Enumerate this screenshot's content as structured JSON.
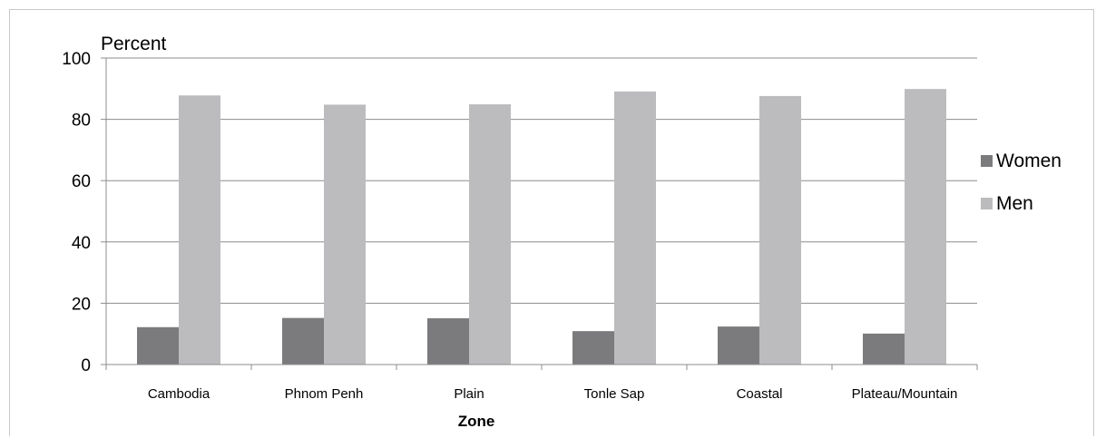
{
  "chart_data": {
    "type": "bar",
    "categories": [
      "Cambodia",
      "Phnom Penh",
      "Plain",
      "Tonle Sap",
      "Coastal",
      "Plateau/Mountain"
    ],
    "series": [
      {
        "name": "Women",
        "values": [
          12.2,
          15.2,
          15.1,
          10.9,
          12.4,
          10.1
        ],
        "color": "#7b7b7d"
      },
      {
        "name": "Men",
        "values": [
          87.8,
          84.8,
          84.9,
          89.1,
          87.6,
          89.9
        ],
        "color": "#bcbcbe"
      }
    ],
    "ylabel": "Percent",
    "xlabel": "Zone",
    "ylim": [
      0,
      100
    ],
    "yticks": [
      0,
      20,
      40,
      60,
      80,
      100
    ],
    "grid": true,
    "legend_position": "right"
  }
}
